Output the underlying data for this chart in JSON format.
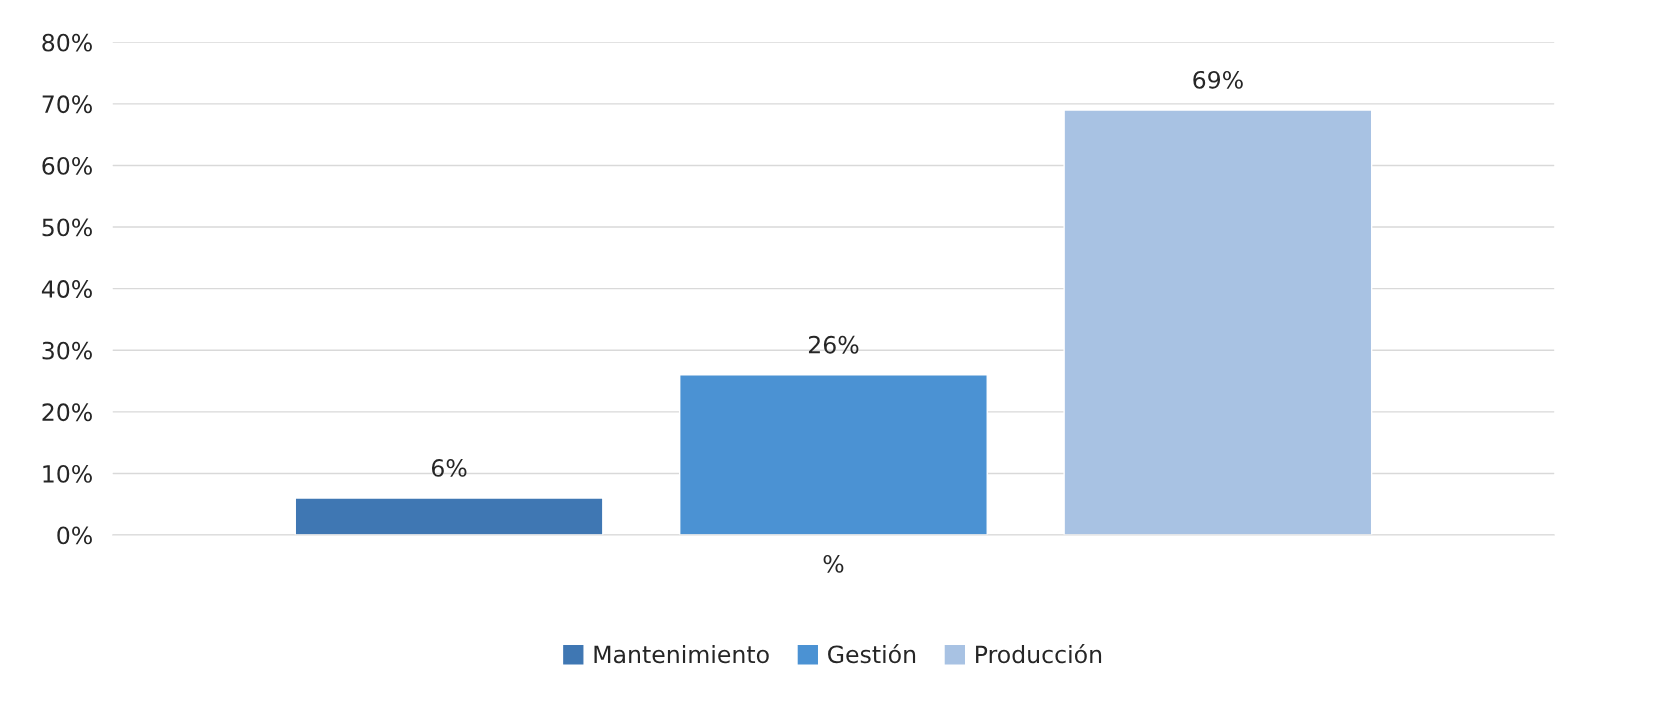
{
  "chart_data": {
    "type": "bar",
    "categories": [
      "%"
    ],
    "series": [
      {
        "name": "Mantenimiento",
        "color": "#3f77b3",
        "values": [
          6
        ],
        "value_labels": [
          "6%"
        ]
      },
      {
        "name": "Gestión",
        "color": "#4b92d3",
        "values": [
          26
        ],
        "value_labels": [
          "26%"
        ]
      },
      {
        "name": "Producción",
        "color": "#a8c2e3",
        "values": [
          69
        ],
        "value_labels": [
          "69%"
        ]
      }
    ],
    "ylim": [
      0,
      80
    ],
    "yticks": [
      {
        "value": 0,
        "label": "0%"
      },
      {
        "value": 10,
        "label": "10%"
      },
      {
        "value": 20,
        "label": "20%"
      },
      {
        "value": 30,
        "label": "30%"
      },
      {
        "value": 40,
        "label": "40%"
      },
      {
        "value": 50,
        "label": "50%"
      },
      {
        "value": 60,
        "label": "60%"
      },
      {
        "value": 70,
        "label": "70%"
      },
      {
        "value": 80,
        "label": "80%"
      }
    ],
    "grid": "y",
    "legend": "bottom"
  }
}
